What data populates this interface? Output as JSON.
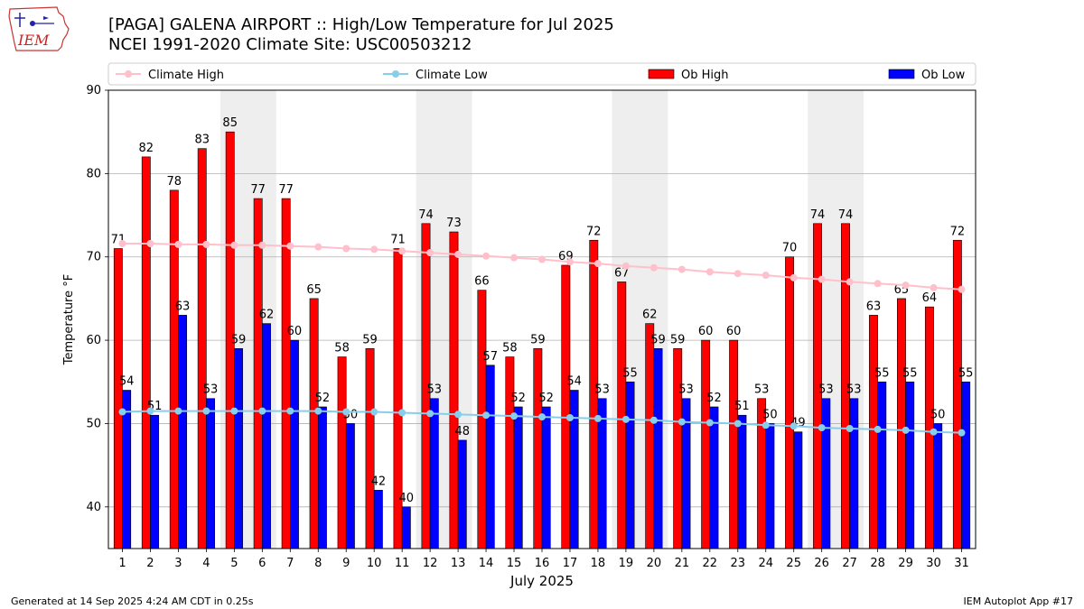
{
  "header": {
    "title_line1": "[PAGA] GALENA AIRPORT :: High/Low Temperature for Jul 2025",
    "title_line2": "NCEI 1991-2020 Climate Site: USC00503212",
    "logo_text": "IEM"
  },
  "footer": {
    "generated": "Generated at 14 Sep 2025 4:24 AM CDT in 0.25s",
    "app": "IEM Autoplot App #17"
  },
  "colors": {
    "ob_high": "#ff0000",
    "ob_low": "#0000ff",
    "climate_high": "#ffc0cb",
    "climate_low": "#87ceeb",
    "weekend_shade": "#eeeeee",
    "grid": "#b0b0b0"
  },
  "chart_data": {
    "type": "bar",
    "title": "[PAGA] GALENA AIRPORT :: High/Low Temperature for Jul 2025",
    "xlabel": "July 2025",
    "ylabel": "Temperature °F",
    "ylim": [
      35,
      90
    ],
    "yticks": [
      40,
      50,
      60,
      70,
      80,
      90
    ],
    "grid": true,
    "legend_position": "top",
    "legend": [
      "Climate High",
      "Climate Low",
      "Ob High",
      "Ob Low"
    ],
    "categories": [
      "1",
      "2",
      "3",
      "4",
      "5",
      "6",
      "7",
      "8",
      "9",
      "10",
      "11",
      "12",
      "13",
      "14",
      "15",
      "16",
      "17",
      "18",
      "19",
      "20",
      "21",
      "22",
      "23",
      "24",
      "25",
      "26",
      "27",
      "28",
      "29",
      "30",
      "31"
    ],
    "shaded_days": [
      [
        5,
        6
      ],
      [
        12,
        13
      ],
      [
        19,
        20
      ],
      [
        26,
        27
      ]
    ],
    "series": [
      {
        "name": "Ob High",
        "kind": "bar",
        "values": [
          71,
          82,
          78,
          83,
          85,
          77,
          77,
          65,
          58,
          59,
          71,
          74,
          73,
          66,
          58,
          59,
          69,
          72,
          67,
          62,
          59,
          60,
          60,
          53,
          70,
          74,
          74,
          63,
          65,
          64,
          72
        ]
      },
      {
        "name": "Ob Low",
        "kind": "bar",
        "values": [
          54,
          51,
          63,
          53,
          59,
          62,
          60,
          52,
          50,
          42,
          40,
          53,
          48,
          57,
          52,
          52,
          54,
          53,
          55,
          59,
          53,
          52,
          51,
          50,
          49,
          53,
          53,
          55,
          55,
          50,
          55
        ]
      },
      {
        "name": "Climate High",
        "kind": "line",
        "values": [
          71.6,
          71.6,
          71.5,
          71.5,
          71.4,
          71.4,
          71.3,
          71.2,
          71.0,
          70.9,
          70.7,
          70.5,
          70.3,
          70.1,
          69.9,
          69.7,
          69.4,
          69.2,
          68.9,
          68.7,
          68.5,
          68.2,
          68.0,
          67.8,
          67.5,
          67.3,
          67.0,
          66.8,
          66.6,
          66.3,
          66.1
        ]
      },
      {
        "name": "Climate Low",
        "kind": "line",
        "values": [
          51.4,
          51.5,
          51.5,
          51.5,
          51.5,
          51.5,
          51.5,
          51.5,
          51.4,
          51.4,
          51.3,
          51.2,
          51.1,
          51.0,
          50.9,
          50.8,
          50.7,
          50.6,
          50.5,
          50.4,
          50.2,
          50.1,
          50.0,
          49.8,
          49.7,
          49.5,
          49.4,
          49.3,
          49.2,
          49.0,
          48.9
        ]
      }
    ]
  }
}
